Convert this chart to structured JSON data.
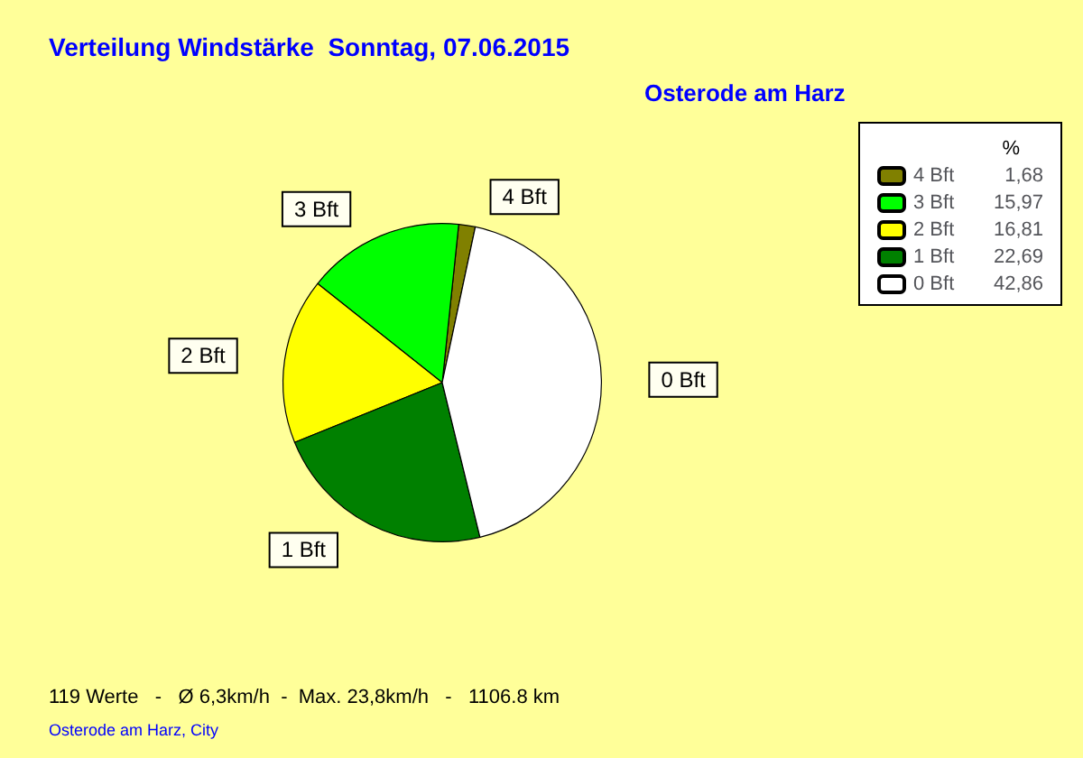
{
  "chart_data": {
    "type": "pie",
    "title": "Verteilung Windstärke  Sonntag, 07.06.2015",
    "subtitle": "Osterode am Harz",
    "legend_title": "%",
    "categories": [
      "4 Bft",
      "3 Bft",
      "2 Bft",
      "1 Bft",
      "0 Bft"
    ],
    "values": [
      1.68,
      15.97,
      16.81,
      22.69,
      42.86
    ],
    "value_labels": [
      "1,68",
      "15,97",
      "16,81",
      "22,69",
      "42,86"
    ],
    "colors": [
      "#808000",
      "#00ff00",
      "#ffff00",
      "#008000",
      "#ffffff"
    ],
    "legend": "top right",
    "annotations": [
      "119 Werte   -   Ø 6,3km/h  -  Max. 23,8km/h   -   1106.8 km",
      "Osterode am Harz, City"
    ]
  }
}
